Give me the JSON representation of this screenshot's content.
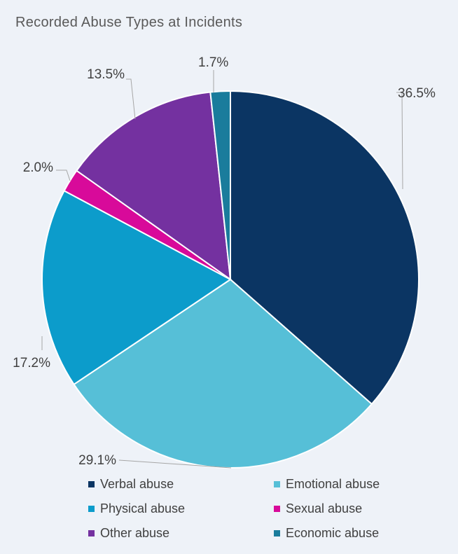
{
  "chart_data": {
    "type": "pie",
    "title": "Recorded Abuse Types at Incidents",
    "slices": [
      {
        "name": "Verbal abuse",
        "value": 36.5,
        "label": "36.5%",
        "color": "#0b3563"
      },
      {
        "name": "Emotional abuse",
        "value": 29.1,
        "label": "29.1%",
        "color": "#56bfd7"
      },
      {
        "name": "Physical abuse",
        "value": 17.2,
        "label": "17.2%",
        "color": "#0c9ccb"
      },
      {
        "name": "Sexual abuse",
        "value": 2.0,
        "label": "2.0%",
        "color": "#d80a9a"
      },
      {
        "name": "Other abuse",
        "value": 13.5,
        "label": "13.5%",
        "color": "#7431a0"
      },
      {
        "name": "Economic abuse",
        "value": 1.7,
        "label": "1.7%",
        "color": "#1a7c9c"
      }
    ],
    "legend_order": [
      "Verbal abuse",
      "Emotional abuse",
      "Physical abuse",
      "Sexual abuse",
      "Other abuse",
      "Economic abuse"
    ],
    "legend_position": "bottom",
    "start_angle": "top",
    "direction": "clockwise"
  }
}
